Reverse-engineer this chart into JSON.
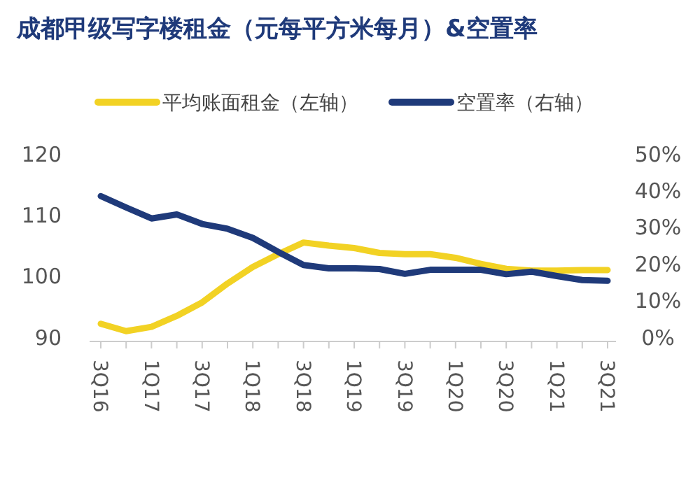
{
  "chart_data": {
    "type": "line",
    "title": "成都甲级写字楼租金（元每平方米每月）&空置率",
    "categories": [
      "3Q16",
      null,
      "1Q17",
      null,
      "3Q17",
      null,
      "1Q18",
      null,
      "3Q18",
      null,
      "1Q19",
      null,
      "3Q19",
      null,
      "1Q20",
      null,
      "3Q20",
      null,
      "1Q21",
      null,
      "3Q21"
    ],
    "series": [
      {
        "name": "平均账面租金（左轴）",
        "color": "#f2d224",
        "values": [
          92.2,
          91.0,
          91.7,
          93.5,
          95.7,
          98.8,
          101.5,
          103.6,
          105.5,
          105.0,
          104.6,
          103.8,
          103.6,
          103.6,
          103.0,
          102.0,
          101.2,
          100.9,
          100.9,
          101.0,
          101.0
        ]
      },
      {
        "name": "空置率（右轴）",
        "color": "#1f3a7a",
        "axis": "y2",
        "values": [
          38.5,
          35.4,
          32.4,
          33.5,
          30.9,
          29.6,
          27.1,
          23.3,
          19.7,
          18.8,
          18.8,
          18.6,
          17.3,
          18.4,
          18.4,
          18.4,
          17.2,
          17.9,
          16.7,
          15.6,
          15.4
        ]
      }
    ],
    "ylim": [
      90,
      120
    ],
    "yticks": [
      90,
      100,
      110,
      120
    ],
    "y2lim": [
      0,
      50
    ],
    "y2ticks": [
      {
        "value": 0,
        "label": "0%"
      },
      {
        "value": 10,
        "label": "10%"
      },
      {
        "value": 20,
        "label": "20%"
      },
      {
        "value": 30,
        "label": "30%"
      },
      {
        "value": 40,
        "label": "40%"
      },
      {
        "value": 50,
        "label": "50%"
      }
    ],
    "legend": "top",
    "grid": false,
    "marker": "none",
    "line_style": "solid"
  }
}
